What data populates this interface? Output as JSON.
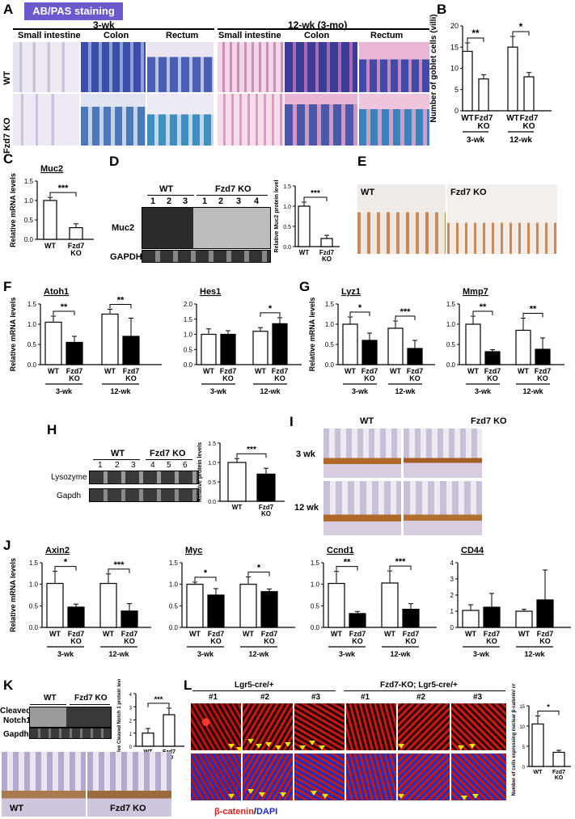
{
  "figure": {
    "panel_labels": {
      "A": "A",
      "B": "B",
      "C": "C",
      "D": "D",
      "E": "E",
      "F": "F",
      "G": "G",
      "H": "H",
      "I": "I",
      "J": "J",
      "K": "K",
      "L": "L"
    },
    "A": {
      "badge": "AB/PAS staining",
      "group_3wk": "3-wk",
      "group_12wk": "12-wk (3-mo)",
      "tissues": [
        "Small intestine",
        "Colon",
        "Rectum",
        "Small intestine",
        "Colon",
        "Rectum"
      ],
      "rows": [
        "WT",
        "Fzd7 KO"
      ]
    },
    "D": {
      "wt": "WT",
      "ko": "Fzd7 KO",
      "lanes": [
        "1",
        "2",
        "3",
        "1",
        "2",
        "3",
        "4"
      ],
      "muc2": "Muc2",
      "gapdh": "GAPDH"
    },
    "E": {
      "wt": "WT",
      "ko": "Fzd7 KO"
    },
    "H": {
      "wt": "WT",
      "ko": "Fzd7 KO",
      "lanes": [
        "1",
        "2",
        "3",
        "4",
        "5",
        "6"
      ],
      "lysozyme": "Lysozyme",
      "gapdh": "Gapdh"
    },
    "I": {
      "wt": "WT",
      "ko": "Fzd7 KO",
      "row1": "3 wk",
      "row2": "12 wk"
    },
    "K": {
      "wt": "WT",
      "ko": "Fzd7 KO",
      "cleaved": "Cleaved",
      "notch1": "Notch1",
      "gapdh": "Gapdh",
      "img_wt": "WT",
      "img_ko": "Fzd7 KO"
    },
    "L": {
      "group1": "Lgr5-cre/+",
      "group2": "Fzd7-KO; Lgr5-cre/+",
      "reps": [
        "#1",
        "#2",
        "#3",
        "#1",
        "#2",
        "#3"
      ],
      "stain_red": "β-catenin",
      "stain_sep": "/",
      "stain_blue": "DAPI"
    },
    "colors": {
      "ab_blue": "#2e3f8f",
      "pas_pink": "#d89ac4",
      "ihc_brown": "#9b5a2a",
      "beta_cat_red": "#d9231c",
      "dapi_blue": "#1b2ec9",
      "badge_bg": "#6a5acd",
      "arrow_yellow": "#f2e200"
    }
  },
  "chart_data": [
    {
      "id": "B",
      "type": "bar",
      "ylabel": "Number of goblet cells (villi)",
      "ylim": [
        0,
        20
      ],
      "yticks": [
        "0",
        "5",
        "10",
        "15",
        "20"
      ],
      "categories": [
        "WT",
        "Fzd7 KO",
        "WT",
        "Fzd7 KO"
      ],
      "values": [
        14,
        7.5,
        15,
        8
      ],
      "errors": [
        2,
        1,
        2.5,
        1
      ],
      "fills": [
        "white",
        "white",
        "white",
        "white"
      ],
      "groups": [
        "3-wk",
        "12-wk"
      ],
      "sig": [
        "**",
        "*"
      ]
    },
    {
      "id": "C",
      "type": "bar",
      "title": "Muc2",
      "ylabel": "Relative mRNA levels",
      "ylim": [
        0,
        1.5
      ],
      "yticks": [
        "0.0",
        "0.5",
        "1.0",
        "1.5"
      ],
      "categories": [
        "WT",
        "Fzd7 KO"
      ],
      "values": [
        1.0,
        0.3
      ],
      "errors": [
        0.08,
        0.1
      ],
      "fills": [
        "white",
        "white"
      ],
      "sig": [
        "***"
      ]
    },
    {
      "id": "D",
      "type": "bar",
      "ylabel": "Relative Muc2 protein level",
      "ylim": [
        0,
        1.5
      ],
      "yticks": [
        "0.0",
        "0.5",
        "1.0",
        "1.5"
      ],
      "categories": [
        "WT",
        "Fzd7 KO"
      ],
      "values": [
        1.0,
        0.2
      ],
      "errors": [
        0.1,
        0.08
      ],
      "fills": [
        "white",
        "white"
      ],
      "sig": [
        "***"
      ]
    },
    {
      "id": "F1",
      "type": "bar",
      "title": "Atoh1",
      "ylabel": "Relative mRNA levels",
      "ylim": [
        0,
        1.5
      ],
      "yticks": [
        "0.0",
        "0.5",
        "1.0",
        "1.5"
      ],
      "categories": [
        "WT",
        "Fzd7 KO",
        "WT",
        "Fzd7 KO"
      ],
      "values": [
        1.05,
        0.55,
        1.25,
        0.7
      ],
      "errors": [
        0.15,
        0.15,
        0.12,
        0.45
      ],
      "fills": [
        "white",
        "black",
        "white",
        "black"
      ],
      "groups": [
        "3-wk",
        "12-wk"
      ],
      "sig": [
        "**",
        "**"
      ]
    },
    {
      "id": "F2",
      "type": "bar",
      "title": "Hes1",
      "ylim": [
        0,
        2.0
      ],
      "yticks": [
        "0.0",
        "0.5",
        "1.0",
        "1.5",
        "2.0"
      ],
      "categories": [
        "WT",
        "Fzd7 KO",
        "WT",
        "Fzd7 KO"
      ],
      "values": [
        1.0,
        1.0,
        1.1,
        1.35
      ],
      "errors": [
        0.18,
        0.12,
        0.12,
        0.2
      ],
      "fills": [
        "white",
        "black",
        "white",
        "black"
      ],
      "groups": [
        "3-wk",
        "12-wk"
      ],
      "sig": [
        "",
        "*"
      ]
    },
    {
      "id": "G1",
      "type": "bar",
      "title": "Lyz1",
      "ylabel": "Relative mRNA levels",
      "ylim": [
        0,
        1.5
      ],
      "yticks": [
        "0.0",
        "0.5",
        "1.0",
        "1.5"
      ],
      "categories": [
        "WT",
        "Fzd7 KO",
        "WT",
        "Fzd7 KO"
      ],
      "values": [
        1.0,
        0.6,
        0.9,
        0.4
      ],
      "errors": [
        0.18,
        0.18,
        0.18,
        0.2
      ],
      "fills": [
        "white",
        "black",
        "white",
        "black"
      ],
      "groups": [
        "3-wk",
        "12-wk"
      ],
      "sig": [
        "*",
        "***"
      ]
    },
    {
      "id": "G2",
      "type": "bar",
      "title": "Mmp7",
      "ylim": [
        0,
        1.5
      ],
      "yticks": [
        "0.0",
        "0.5",
        "1.0",
        "1.5"
      ],
      "categories": [
        "WT",
        "Fzd7 KO",
        "WT",
        "Fzd7 KO"
      ],
      "values": [
        1.0,
        0.32,
        0.85,
        0.38
      ],
      "errors": [
        0.2,
        0.05,
        0.3,
        0.28
      ],
      "fills": [
        "white",
        "black",
        "white",
        "black"
      ],
      "groups": [
        "3-wk",
        "12-wk"
      ],
      "sig": [
        "**",
        "**"
      ]
    },
    {
      "id": "H",
      "type": "bar",
      "ylabel": "Relative protein levels",
      "ylim": [
        0,
        1.5
      ],
      "yticks": [
        "0.0",
        "0.5",
        "1.0",
        "1.5"
      ],
      "categories": [
        "WT",
        "Fzd7 KO"
      ],
      "values": [
        1.0,
        0.7
      ],
      "errors": [
        0.1,
        0.15
      ],
      "fills": [
        "white",
        "black"
      ],
      "sig": [
        "***"
      ]
    },
    {
      "id": "J1",
      "type": "bar",
      "title": "Axin2",
      "ylabel": "Relative mRNA levels",
      "ylim": [
        0,
        1.5
      ],
      "yticks": [
        "0.0",
        "0.5",
        "1.0",
        "1.5"
      ],
      "categories": [
        "WT",
        "Fzd7 KO",
        "WT",
        "Fzd7 KO"
      ],
      "values": [
        1.02,
        0.47,
        1.02,
        0.38
      ],
      "errors": [
        0.28,
        0.07,
        0.22,
        0.17
      ],
      "fills": [
        "white",
        "black",
        "white",
        "black"
      ],
      "groups": [
        "3-wk",
        "12-wk"
      ],
      "sig": [
        "*",
        "***"
      ]
    },
    {
      "id": "J2",
      "type": "bar",
      "title": "Myc",
      "ylim": [
        0,
        1.5
      ],
      "yticks": [
        "0.0",
        "0.5",
        "1.0",
        "1.5"
      ],
      "categories": [
        "WT",
        "Fzd7 KO",
        "WT",
        "Fzd7 KO"
      ],
      "values": [
        1.0,
        0.75,
        1.0,
        0.83
      ],
      "errors": [
        0.05,
        0.15,
        0.17,
        0.06
      ],
      "fills": [
        "white",
        "black",
        "white",
        "black"
      ],
      "groups": [
        "3-wk",
        "12-wk"
      ],
      "sig": [
        "*",
        "*"
      ]
    },
    {
      "id": "J3",
      "type": "bar",
      "title": "Ccnd1",
      "ylim": [
        0,
        1.5
      ],
      "yticks": [
        "0.0",
        "0.5",
        "1.0",
        "1.5"
      ],
      "categories": [
        "WT",
        "Fzd7 KO",
        "WT",
        "Fzd7 KO"
      ],
      "values": [
        1.02,
        0.32,
        1.03,
        0.42
      ],
      "errors": [
        0.28,
        0.05,
        0.28,
        0.13
      ],
      "fills": [
        "white",
        "black",
        "white",
        "black"
      ],
      "groups": [
        "3-wk",
        "12-wk"
      ],
      "sig": [
        "**",
        "***"
      ]
    },
    {
      "id": "J4",
      "type": "bar",
      "title": "CD44",
      "ylim": [
        0,
        4
      ],
      "yticks": [
        "0",
        "1",
        "2",
        "3",
        "4"
      ],
      "categories": [
        "WT",
        "Fzd7 KO",
        "WT",
        "Fzd7 KO"
      ],
      "values": [
        1.05,
        1.25,
        1.0,
        1.7
      ],
      "errors": [
        0.35,
        0.85,
        0.12,
        1.85
      ],
      "fills": [
        "white",
        "black",
        "white",
        "black"
      ],
      "groups": [
        "3-wk",
        "12-wk"
      ],
      "sig": [
        "",
        ""
      ]
    },
    {
      "id": "K",
      "type": "bar",
      "ylabel": "Relative Cleaved Notch 1 protein level",
      "ylim": [
        0,
        4
      ],
      "yticks": [
        "0",
        "1",
        "2",
        "3",
        "4"
      ],
      "categories": [
        "WT",
        "Fzd7 KO"
      ],
      "values": [
        1.0,
        2.4
      ],
      "errors": [
        0.35,
        0.5
      ],
      "fills": [
        "white",
        "white"
      ],
      "sig": [
        "***"
      ]
    },
    {
      "id": "L",
      "type": "bar",
      "ylabel": "Number of cells expressing nuclear β-catenin/ crypt",
      "ylim": [
        0,
        15
      ],
      "yticks": [
        "0",
        "5",
        "10",
        "15"
      ],
      "categories": [
        "WT",
        "Fzd7 KO"
      ],
      "values": [
        10.5,
        3.5
      ],
      "errors": [
        2.0,
        0.5
      ],
      "fills": [
        "white",
        "white"
      ],
      "sig": [
        "*"
      ]
    }
  ]
}
